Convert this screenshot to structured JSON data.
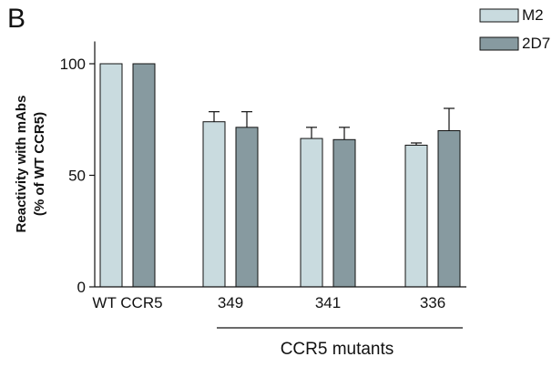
{
  "panel_label": "B",
  "chart_data": {
    "type": "bar",
    "categories": [
      "WT CCR5",
      "349",
      "341",
      "336"
    ],
    "series": [
      {
        "name": "M2",
        "values": [
          100,
          74,
          66.5,
          63.5
        ],
        "errors": [
          0,
          4.5,
          5,
          1
        ],
        "color": "#c9dbdf"
      },
      {
        "name": "2D7",
        "values": [
          100,
          71.5,
          66,
          70
        ],
        "errors": [
          0,
          7,
          5.5,
          10
        ],
        "color": "#879aa0"
      }
    ],
    "ylabel_line1": "Reactivity with mAbs",
    "ylabel_line2": "(% of WT CCR5)",
    "group_label": "CCR5 mutants",
    "ylim": [
      0,
      110
    ],
    "yticks": [
      0,
      50,
      100
    ],
    "ytick_labels": [
      "0",
      "50",
      "100"
    ],
    "legend_position": "top-right",
    "grid": false
  }
}
